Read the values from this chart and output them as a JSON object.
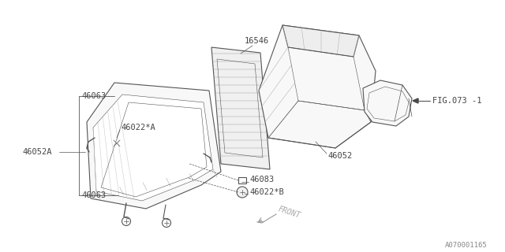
{
  "background_color": "#ffffff",
  "line_color": "#555555",
  "text_color": "#444444",
  "label_16546": "16546",
  "label_46063": "46063",
  "label_46022A": "46022*A",
  "label_46052A": "46052A",
  "label_46063b": "46063",
  "label_46083": "46083",
  "label_46022B": "46022*B",
  "label_46052": "46052",
  "label_fig073": "FIG.073 -1",
  "label_front": "FRONT",
  "watermark": "A070001165",
  "font_size_parts": 7.5,
  "font_size_watermark": 6.5,
  "hatch_color": "#aaaaaa"
}
